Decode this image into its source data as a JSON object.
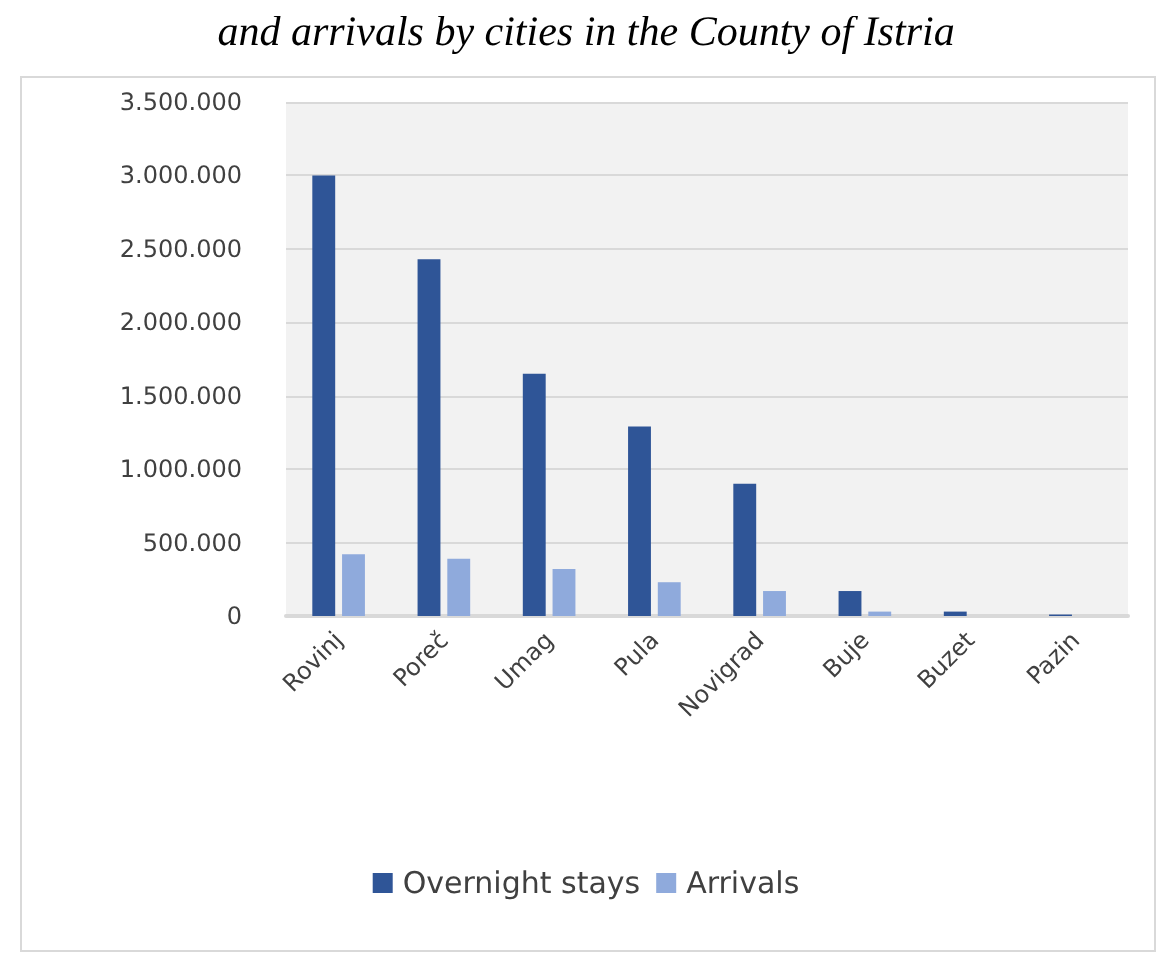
{
  "chart_data": {
    "type": "bar",
    "title": "and arrivals by cities in the County of Istria",
    "categories": [
      "Rovinj",
      "Poreč",
      "Umag",
      "Pula",
      "Novigrad",
      "Buje",
      "Buzet",
      "Pazin"
    ],
    "series": [
      {
        "name": "Overnight stays",
        "color": "#2f5597",
        "values": [
          3000000,
          2430000,
          1650000,
          1290000,
          900000,
          170000,
          30000,
          10000
        ]
      },
      {
        "name": "Arrivals",
        "color": "#8faadc",
        "values": [
          420000,
          390000,
          320000,
          230000,
          170000,
          30000,
          null,
          null
        ]
      }
    ],
    "ylim": [
      0,
      3500000
    ],
    "yticks": [
      {
        "value": 0,
        "label": "0"
      },
      {
        "value": 500000,
        "label": "500.000"
      },
      {
        "value": 1000000,
        "label": "1.000.000"
      },
      {
        "value": 1500000,
        "label": "1.500.000"
      },
      {
        "value": 2000000,
        "label": "2.000.000"
      },
      {
        "value": 2500000,
        "label": "2.500.000"
      },
      {
        "value": 3000000,
        "label": "3.000.000"
      },
      {
        "value": 3500000,
        "label": "3.500.000"
      }
    ],
    "grid": "y",
    "legend": "bottom"
  }
}
